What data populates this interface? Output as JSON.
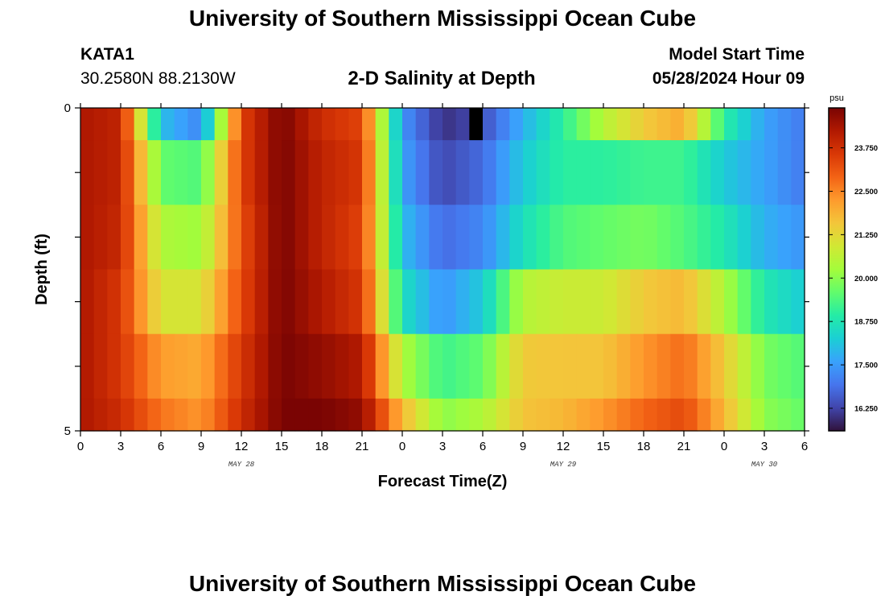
{
  "page": {
    "title": "University of Southern Mississippi Ocean Cube",
    "footer_title": "University of Southern Mississippi Ocean Cube",
    "station": "KATA1",
    "coords": "30.2580N  88.2130W",
    "plot_title": "2-D Salinity at Depth",
    "model_start_label": "Model Start Time",
    "model_start_value": "05/28/2024 Hour 09"
  },
  "chart_data": {
    "type": "heatmap",
    "title": "2-D Salinity at Depth",
    "xlabel": "Forecast Time(Z)",
    "ylabel": "Depth (ft)",
    "x_tick_labels": [
      "0",
      "3",
      "6",
      "9",
      "12",
      "15",
      "18",
      "21",
      "0",
      "3",
      "6",
      "9",
      "12",
      "15",
      "18",
      "21",
      "0",
      "3",
      "6"
    ],
    "y_tick_labels": [
      "0",
      "5"
    ],
    "ylim": [
      0,
      5
    ],
    "date_labels": [
      {
        "label": "MAY 28",
        "hour": 12
      },
      {
        "label": "MAY 29",
        "hour": 36
      },
      {
        "label": "MAY 30",
        "hour": 51
      }
    ],
    "colorbar": {
      "unit": "psu",
      "vmin": 15.6,
      "vmax": 24.9,
      "ticks": [
        "16.250",
        "17.500",
        "18.750",
        "20.000",
        "21.250",
        "22.500",
        "23.750"
      ],
      "colors": [
        "#30123b",
        "#4145ab",
        "#4675ed",
        "#39a2fc",
        "#1bcfd4",
        "#24eca6",
        "#61fc6c",
        "#a4fc3b",
        "#d1e834",
        "#f3c63a",
        "#fe9b2d",
        "#f36315",
        "#d93806",
        "#b11901",
        "#7a0403"
      ]
    },
    "time_hours": [
      0,
      3,
      6,
      9,
      12,
      15,
      18,
      21,
      24,
      27,
      30,
      33,
      36,
      39,
      42,
      45,
      48,
      51,
      54
    ],
    "depth_layers_ft": [
      0.25,
      1.0,
      2.0,
      3.0,
      4.0,
      4.75
    ],
    "salinity_psu": [
      [
        24.3,
        24.0,
        18.0,
        17.2,
        23.4,
        24.9,
        23.8,
        23.4,
        17.4,
        16.0,
        16.4,
        17.8,
        19.0,
        20.5,
        21.5,
        22.0,
        19.0,
        17.6,
        17.0
      ],
      [
        24.3,
        24.0,
        19.6,
        19.4,
        23.4,
        24.9,
        24.0,
        23.6,
        17.6,
        16.3,
        16.8,
        18.2,
        19.0,
        19.0,
        19.2,
        19.2,
        18.2,
        17.6,
        17.0
      ],
      [
        24.3,
        23.9,
        20.4,
        20.2,
        23.2,
        24.9,
        24.0,
        23.4,
        18.0,
        16.8,
        17.2,
        18.6,
        19.4,
        19.6,
        19.8,
        19.4,
        18.8,
        17.8,
        17.4
      ],
      [
        24.3,
        23.6,
        21.0,
        21.0,
        23.3,
        24.9,
        24.2,
        23.6,
        18.6,
        17.4,
        18.2,
        20.5,
        20.8,
        20.8,
        21.5,
        21.8,
        20.4,
        18.8,
        18.2
      ],
      [
        24.3,
        23.6,
        22.2,
        22.0,
        23.6,
        24.9,
        24.6,
        24.2,
        20.4,
        19.2,
        19.6,
        21.5,
        21.6,
        21.6,
        22.3,
        22.8,
        21.5,
        19.8,
        19.4
      ],
      [
        24.3,
        23.8,
        22.7,
        22.3,
        23.8,
        24.9,
        24.9,
        24.6,
        21.8,
        20.0,
        20.4,
        21.6,
        21.8,
        22.3,
        22.9,
        23.3,
        21.8,
        20.0,
        19.6
      ]
    ],
    "missing_cells": [
      {
        "depth_layer": 0,
        "hour": 29
      }
    ]
  }
}
